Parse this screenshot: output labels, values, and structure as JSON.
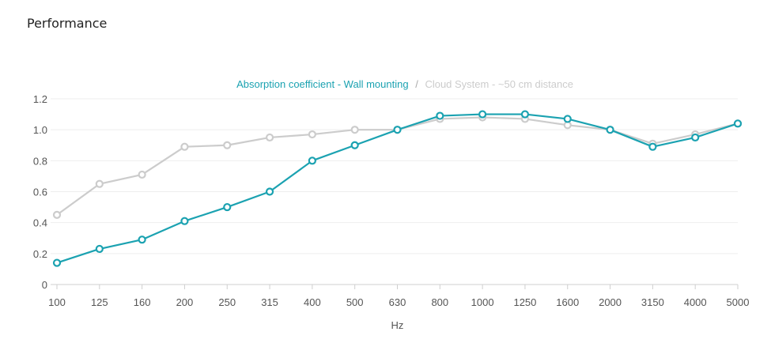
{
  "header": {
    "title": "Performance"
  },
  "chart_data": {
    "type": "line",
    "categories": [
      "100",
      "125",
      "160",
      "200",
      "250",
      "315",
      "400",
      "500",
      "630",
      "800",
      "1000",
      "1250",
      "1600",
      "2000",
      "3150",
      "4000",
      "5000"
    ],
    "series": [
      {
        "name": "Absorption coefficient - Wall mounting",
        "color": "#1ba2b1",
        "values": [
          0.14,
          0.23,
          0.29,
          0.41,
          0.5,
          0.6,
          0.8,
          0.9,
          1.0,
          1.09,
          1.1,
          1.1,
          1.07,
          1.0,
          0.89,
          0.95,
          1.04
        ]
      },
      {
        "name": "Cloud System - ~50 cm distance",
        "color": "#cccccc",
        "values": [
          0.45,
          0.65,
          0.71,
          0.89,
          0.9,
          0.95,
          0.97,
          1.0,
          1.0,
          1.07,
          1.08,
          1.07,
          1.03,
          1.0,
          0.91,
          0.97,
          1.04
        ]
      }
    ],
    "legend": {
      "separator": "/",
      "position": "top-center"
    },
    "xlabel": "Hz",
    "ylabel": "",
    "ylim": [
      0,
      1.2
    ],
    "yticks": [
      "0",
      "0.2",
      "0.4",
      "0.6",
      "0.8",
      "1.0",
      "1.2"
    ],
    "grid": true
  }
}
